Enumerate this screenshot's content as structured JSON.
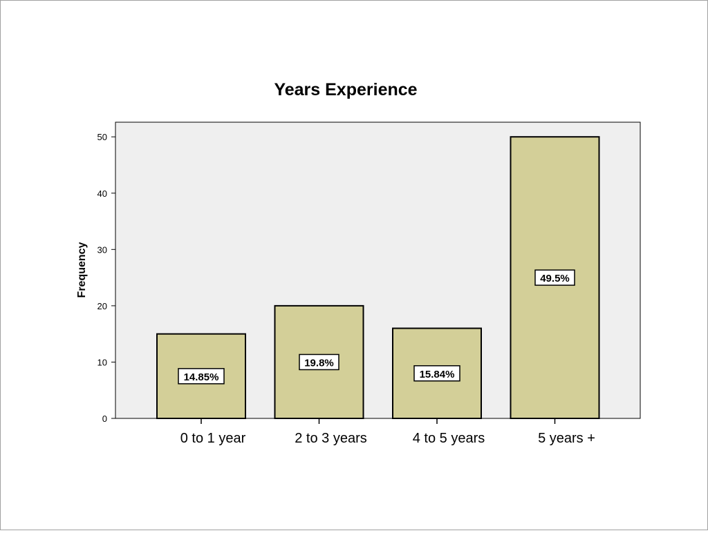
{
  "chart_data": {
    "type": "bar",
    "title": "Years Experience",
    "xlabel": "",
    "ylabel": "Frequency",
    "categories": [
      "0 to 1 year",
      "2 to 3 years",
      "4 to 5 years",
      "5 years +"
    ],
    "values": [
      15,
      20,
      16,
      50
    ],
    "data_labels": [
      "14.85%",
      "19.8%",
      "15.84%",
      "49.5%"
    ],
    "ylim": [
      0,
      52.6
    ],
    "yticks": [
      0,
      10,
      20,
      30,
      40,
      50
    ],
    "grid": false,
    "legend": "none",
    "colors": {
      "bar_fill": "#d3cf98",
      "bar_stroke": "#000000",
      "plot_background": "#efefef",
      "label_box_fill": "#ffffff"
    }
  }
}
